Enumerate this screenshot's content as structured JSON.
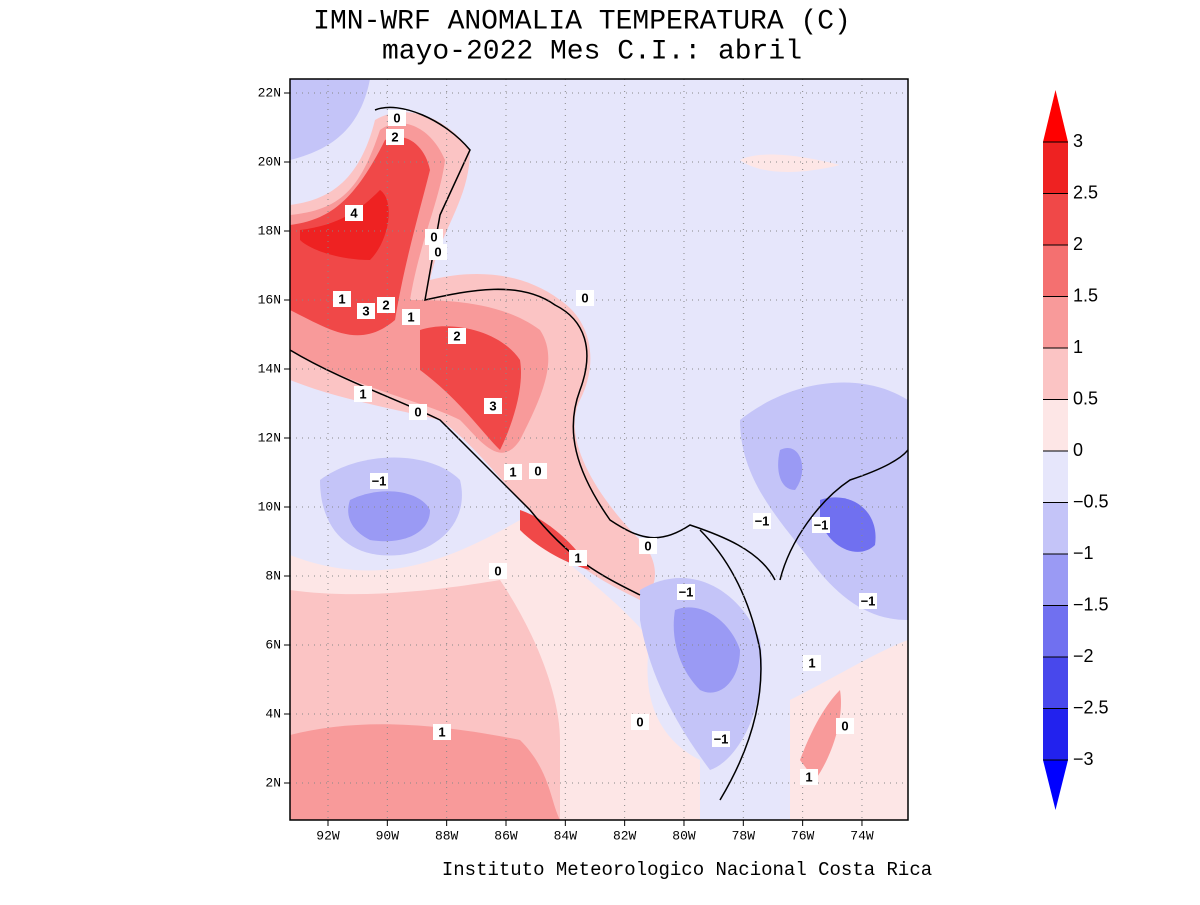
{
  "title": "IMN-WRF  ANOMALIA TEMPERATURA (C)",
  "subtitle": "mayo-2022 Mes C.I.: abril",
  "map": {
    "lat_ticks": [
      "22N",
      "20N",
      "18N",
      "16N",
      "14N",
      "12N",
      "10N",
      "8N",
      "6N",
      "4N",
      "2N"
    ],
    "lon_ticks": [
      "92W",
      "90W",
      "88W",
      "86W",
      "84W",
      "82W",
      "80W",
      "78W",
      "76W",
      "74W"
    ],
    "contour_labels": [
      "0",
      "2",
      "4",
      "0",
      "0",
      "1",
      "3",
      "2",
      "1",
      "2",
      "1",
      "3",
      "0",
      "0",
      "1",
      "0",
      "−1",
      "1",
      "0",
      "−1",
      "−1",
      "−1",
      "−1",
      "1",
      "0",
      "0",
      "−1",
      "1",
      "0",
      "1"
    ]
  },
  "colorbar": {
    "labels": [
      "3",
      "2.5",
      "2",
      "1.5",
      "1",
      "0.5",
      "0",
      "−0.5",
      "−1",
      "−1.5",
      "−2",
      "−2.5",
      "−3"
    ],
    "colors": [
      "#ff0000",
      "#ee2222",
      "#f04848",
      "#f47070",
      "#f89a9a",
      "#fbc4c4",
      "#fde6e6",
      "#e6e6fb",
      "#c4c4f8",
      "#9a9af4",
      "#7070f0",
      "#4848ec",
      "#2222ee",
      "#0000ff"
    ]
  },
  "footer": "Instituto Meteorologico Nacional Costa Rica"
}
